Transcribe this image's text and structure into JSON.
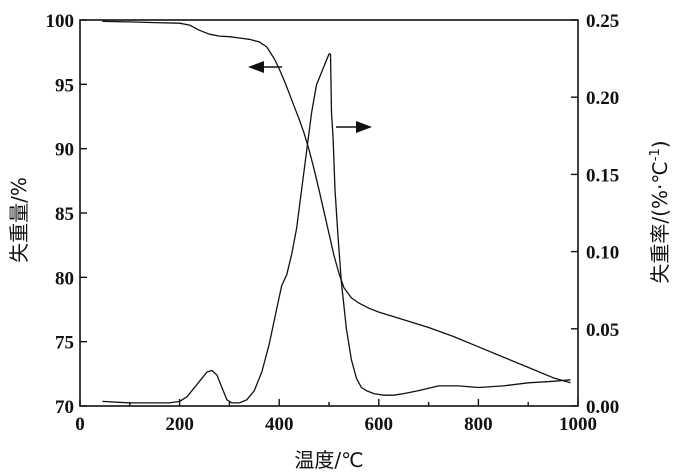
{
  "chart_data": {
    "type": "line",
    "xlabel": "温度/℃",
    "ylabel_left": "失重量/%",
    "ylabel_right": "失重率/(%·℃-1)",
    "ylabel_right_parts": {
      "base": "失重率/(%·℃",
      "sup": "-1",
      "close": ")"
    },
    "xlim": [
      0,
      1000
    ],
    "ylim_left": [
      70,
      100
    ],
    "ylim_right": [
      0,
      0.25
    ],
    "x_ticks": [
      "0",
      "200",
      "400",
      "600",
      "800",
      "1000"
    ],
    "y_left_ticks": [
      "70",
      "75",
      "80",
      "85",
      "90",
      "95",
      "100"
    ],
    "y_right_ticks": [
      "0.00",
      "0.05",
      "0.10",
      "0.15",
      "0.20",
      "0.25"
    ],
    "grid": false,
    "legend": "none",
    "series": [
      {
        "axis": "left",
        "x": [
          45,
          100,
          150,
          200,
          220,
          240,
          260,
          280,
          300,
          320,
          340,
          360,
          375,
          390,
          400,
          410,
          420,
          430,
          440,
          450,
          460,
          470,
          480,
          490,
          500,
          510,
          520,
          530,
          545,
          560,
          580,
          600,
          650,
          700,
          750,
          800,
          850,
          900,
          950,
          985
        ],
        "y": [
          99.9,
          99.85,
          99.8,
          99.75,
          99.6,
          99.2,
          98.9,
          98.75,
          98.7,
          98.6,
          98.5,
          98.3,
          97.9,
          97.0,
          96.2,
          95.3,
          94.3,
          93.3,
          92.3,
          91.2,
          89.9,
          88.4,
          86.8,
          85.1,
          83.4,
          81.7,
          80.3,
          79.2,
          78.4,
          78.0,
          77.6,
          77.3,
          76.7,
          76.1,
          75.4,
          74.6,
          73.8,
          73.0,
          72.2,
          71.8
        ]
      },
      {
        "axis": "right",
        "x": [
          45,
          100,
          150,
          180,
          200,
          215,
          230,
          245,
          255,
          265,
          275,
          285,
          295,
          305,
          320,
          335,
          350,
          365,
          380,
          395,
          405,
          415,
          425,
          435,
          445,
          455,
          465,
          475,
          485,
          490,
          495,
          500,
          503,
          505,
          508,
          512,
          518,
          525,
          535,
          545,
          555,
          565,
          575,
          590,
          610,
          630,
          650,
          680,
          720,
          760,
          800,
          850,
          900,
          950,
          985
        ],
        "y": [
          0.003,
          0.002,
          0.002,
          0.002,
          0.003,
          0.006,
          0.012,
          0.018,
          0.022,
          0.023,
          0.02,
          0.012,
          0.004,
          0.002,
          0.002,
          0.004,
          0.01,
          0.022,
          0.04,
          0.063,
          0.078,
          0.085,
          0.098,
          0.115,
          0.14,
          0.165,
          0.19,
          0.208,
          0.216,
          0.22,
          0.224,
          0.228,
          0.228,
          0.19,
          0.175,
          0.14,
          0.11,
          0.08,
          0.05,
          0.03,
          0.018,
          0.012,
          0.01,
          0.008,
          0.007,
          0.007,
          0.008,
          0.01,
          0.013,
          0.013,
          0.012,
          0.013,
          0.015,
          0.016,
          0.017
        ]
      }
    ]
  }
}
